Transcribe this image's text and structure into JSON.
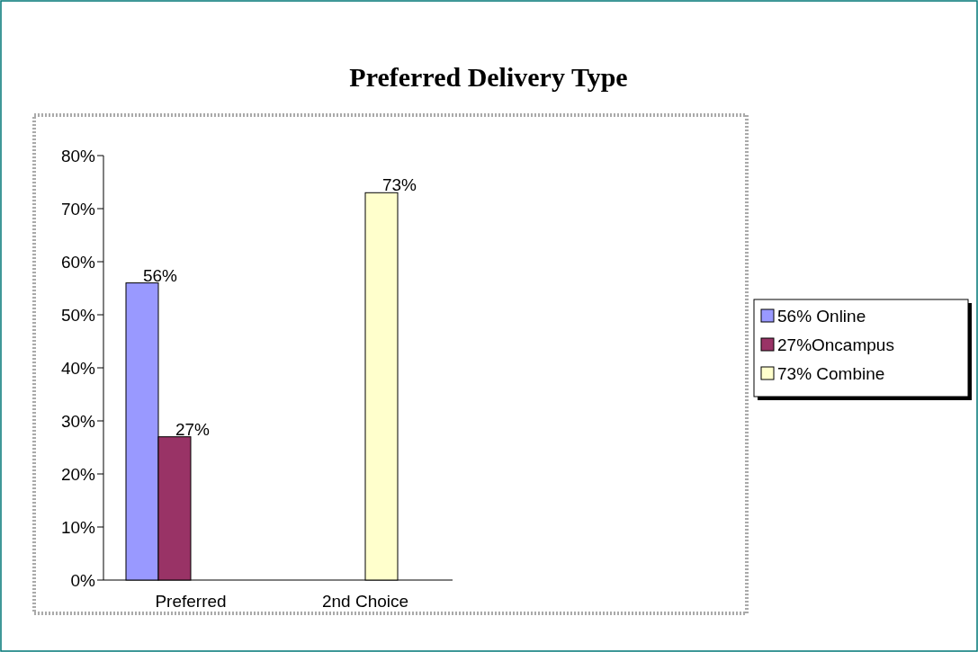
{
  "chart_data": {
    "type": "bar",
    "title": "Preferred Delivery Type",
    "categories": [
      "Preferred",
      "2nd Choice"
    ],
    "series": [
      {
        "name": "56% Online",
        "color": "#9999ff",
        "values": [
          56,
          null
        ],
        "value_labels": [
          "56%",
          null
        ]
      },
      {
        "name": "27%Oncampus",
        "color": "#993366",
        "values": [
          27,
          null
        ],
        "value_labels": [
          "27%",
          null
        ]
      },
      {
        "name": "73% Combine",
        "color": "#ffffcc",
        "values": [
          null,
          73
        ],
        "value_labels": [
          null,
          "73%"
        ]
      }
    ],
    "ylim": [
      0,
      80
    ],
    "yticks": [
      {
        "value": 0,
        "label": "0%"
      },
      {
        "value": 10,
        "label": "10%"
      },
      {
        "value": 20,
        "label": "20%"
      },
      {
        "value": 30,
        "label": "30%"
      },
      {
        "value": 40,
        "label": "40%"
      },
      {
        "value": 50,
        "label": "50%"
      },
      {
        "value": 60,
        "label": "60%"
      },
      {
        "value": 70,
        "label": "70%"
      },
      {
        "value": 80,
        "label": "80%"
      }
    ],
    "grid": false,
    "legend": "right"
  }
}
